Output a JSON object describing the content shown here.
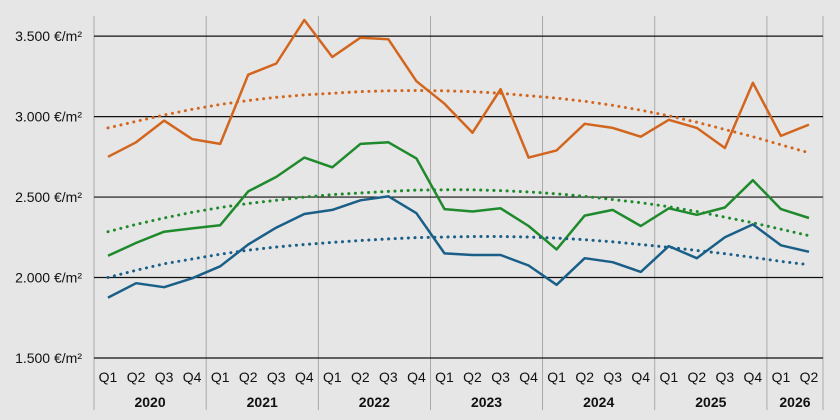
{
  "chart_data": {
    "type": "line",
    "y_unit_suffix": " €/m²",
    "ylim": [
      1500,
      3625
    ],
    "yticks": [
      1500,
      2000,
      2500,
      3000,
      3500
    ],
    "ytick_labels": [
      "1.500 €/m²",
      "2.000 €/m²",
      "2.500 €/m²",
      "3.000 €/m²",
      "3.500 €/m²"
    ],
    "grid": true,
    "x": [
      "Q1",
      "Q2",
      "Q3",
      "Q4",
      "Q1",
      "Q2",
      "Q3",
      "Q4",
      "Q1",
      "Q2",
      "Q3",
      "Q4",
      "Q1",
      "Q2",
      "Q3",
      "Q4",
      "Q1",
      "Q2",
      "Q3",
      "Q4",
      "Q1",
      "Q2",
      "Q3",
      "Q4",
      "Q1",
      "Q2"
    ],
    "year_groups": [
      {
        "label": "2020",
        "start": 0,
        "count": 4
      },
      {
        "label": "2021",
        "start": 4,
        "count": 4
      },
      {
        "label": "2022",
        "start": 8,
        "count": 4
      },
      {
        "label": "2023",
        "start": 12,
        "count": 4
      },
      {
        "label": "2024",
        "start": 16,
        "count": 4
      },
      {
        "label": "2025",
        "start": 20,
        "count": 4
      },
      {
        "label": "2026",
        "start": 24,
        "count": 2
      }
    ],
    "series": [
      {
        "color": "#d2661f",
        "values": [
          2750,
          2840,
          2975,
          2860,
          2830,
          3260,
          3330,
          3600,
          3370,
          3490,
          3480,
          3220,
          3080,
          2900,
          3170,
          2745,
          2790,
          2955,
          2930,
          2875,
          2980,
          2930,
          2805,
          3210,
          2880,
          2950
        ],
        "trend": [
          2930,
          2970,
          3010,
          3045,
          3075,
          3100,
          3120,
          3135,
          3145,
          3155,
          3160,
          3162,
          3160,
          3155,
          3145,
          3130,
          3115,
          3095,
          3070,
          3040,
          3005,
          2965,
          2920,
          2875,
          2825,
          2775
        ]
      },
      {
        "color": "#1f8a2c",
        "values": [
          2135,
          2215,
          2285,
          2305,
          2325,
          2535,
          2625,
          2745,
          2685,
          2830,
          2840,
          2740,
          2425,
          2410,
          2430,
          2320,
          2175,
          2385,
          2420,
          2320,
          2430,
          2390,
          2435,
          2605,
          2425,
          2370
        ],
        "trend": [
          2285,
          2330,
          2370,
          2405,
          2435,
          2460,
          2480,
          2500,
          2515,
          2525,
          2535,
          2543,
          2545,
          2545,
          2540,
          2532,
          2520,
          2505,
          2485,
          2465,
          2440,
          2410,
          2375,
          2340,
          2300,
          2260
        ]
      },
      {
        "color": "#1a5f88",
        "values": [
          1875,
          1965,
          1940,
          1995,
          2070,
          2205,
          2310,
          2395,
          2420,
          2480,
          2505,
          2400,
          2150,
          2140,
          2140,
          2075,
          1955,
          2120,
          2095,
          2035,
          2195,
          2120,
          2250,
          2330,
          2200,
          2160
        ],
        "trend": [
          2000,
          2045,
          2085,
          2115,
          2145,
          2170,
          2190,
          2205,
          2218,
          2230,
          2240,
          2248,
          2252,
          2255,
          2255,
          2252,
          2245,
          2235,
          2222,
          2205,
          2188,
          2168,
          2148,
          2125,
          2100,
          2080
        ]
      }
    ]
  }
}
